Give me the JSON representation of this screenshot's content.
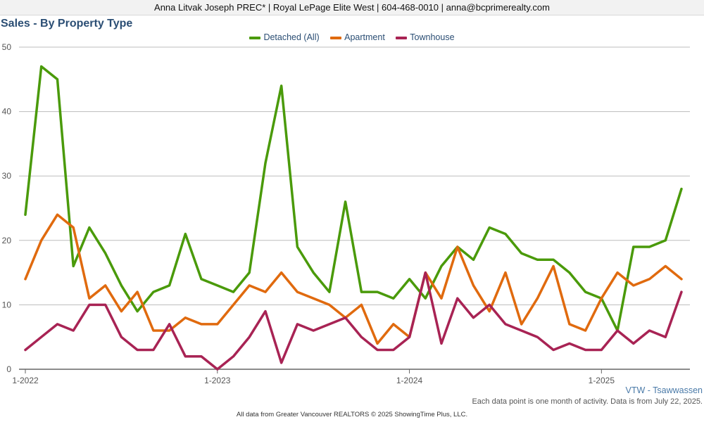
{
  "header": {
    "text": "Anna Litvak Joseph PREC* | Royal LePage Elite West | 604-468-0010 | anna@bcprimerealty.com"
  },
  "note": "Each data point is one month of activity. Data is from July 22, 2025.",
  "region_label": "VTW - Tsawwassen",
  "footer": "All data from Greater Vancouver REALTORS © 2025 ShowingTime Plus, LLC.",
  "chart_data": {
    "type": "line",
    "title": "Sales - By Property Type",
    "xlabel": "",
    "ylabel": "",
    "ylim": [
      0,
      50
    ],
    "yticks": [
      "0",
      "10",
      "20",
      "30",
      "40",
      "50"
    ],
    "xtick_labels": [
      "1-2022",
      "1-2023",
      "1-2024",
      "1-2025"
    ],
    "xtick_index": [
      0,
      12,
      24,
      36
    ],
    "x": [
      "2022-01",
      "2022-02",
      "2022-03",
      "2022-04",
      "2022-05",
      "2022-06",
      "2022-07",
      "2022-08",
      "2022-09",
      "2022-10",
      "2022-11",
      "2022-12",
      "2023-01",
      "2023-02",
      "2023-03",
      "2023-04",
      "2023-05",
      "2023-06",
      "2023-07",
      "2023-08",
      "2023-09",
      "2023-10",
      "2023-11",
      "2023-12",
      "2024-01",
      "2024-02",
      "2024-03",
      "2024-04",
      "2024-05",
      "2024-06",
      "2024-07",
      "2024-08",
      "2024-09",
      "2024-10",
      "2024-11",
      "2024-12",
      "2025-01",
      "2025-02",
      "2025-03",
      "2025-04",
      "2025-05",
      "2025-06"
    ],
    "grid": true,
    "legend_position": "top-center",
    "series": [
      {
        "name": "Detached (All)",
        "color": "#4a9a0a",
        "values": [
          24,
          47,
          45,
          16,
          22,
          18,
          13,
          9,
          12,
          13,
          21,
          14,
          13,
          12,
          15,
          32,
          44,
          19,
          15,
          12,
          26,
          12,
          12,
          11,
          14,
          11,
          16,
          19,
          17,
          22,
          21,
          18,
          17,
          17,
          15,
          12,
          11,
          6,
          19,
          19,
          20,
          28
        ]
      },
      {
        "name": "Apartment",
        "color": "#e06a0e",
        "values": [
          14,
          20,
          24,
          22,
          11,
          13,
          9,
          12,
          6,
          6,
          8,
          7,
          7,
          10,
          13,
          12,
          15,
          12,
          11,
          10,
          8,
          10,
          4,
          7,
          5,
          15,
          11,
          19,
          13,
          9,
          15,
          7,
          11,
          16,
          7,
          6,
          11,
          15,
          13,
          14,
          16,
          14
        ]
      },
      {
        "name": "Townhouse",
        "color": "#a82354",
        "values": [
          3,
          5,
          7,
          6,
          10,
          10,
          5,
          3,
          3,
          7,
          2,
          2,
          0,
          2,
          5,
          9,
          1,
          7,
          6,
          7,
          8,
          5,
          3,
          3,
          5,
          15,
          4,
          11,
          8,
          10,
          7,
          6,
          5,
          3,
          4,
          3,
          3,
          6,
          4,
          6,
          5,
          12
        ]
      }
    ]
  }
}
